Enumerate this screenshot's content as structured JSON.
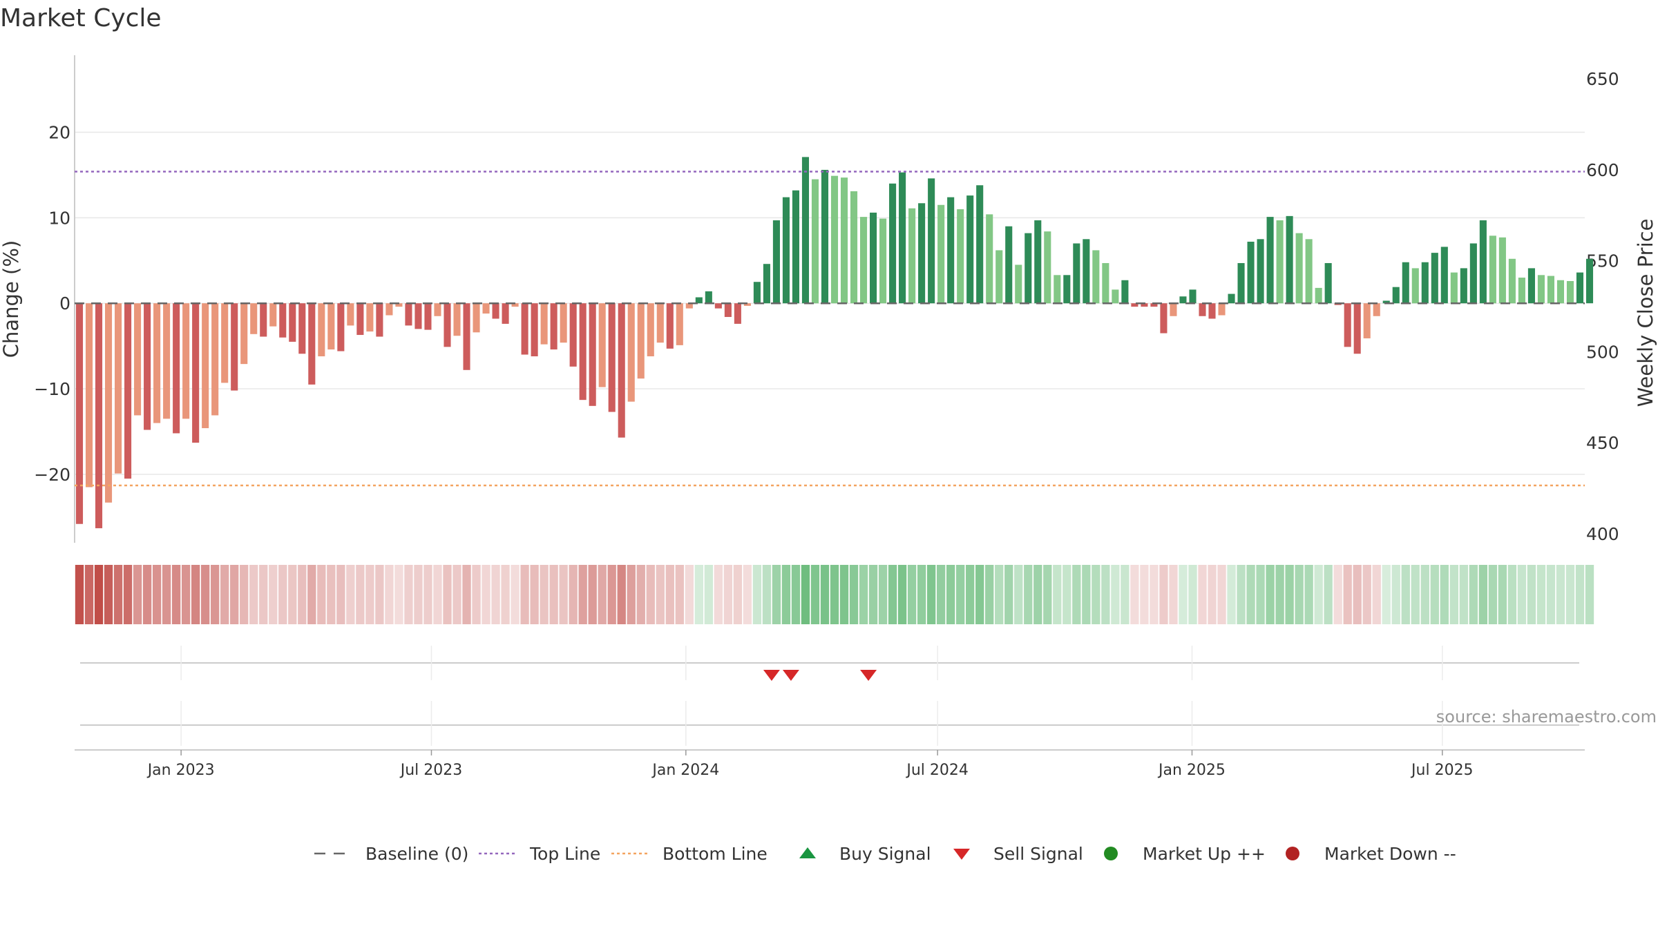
{
  "chart_data": {
    "type": "bar",
    "title": "Market Cycle",
    "ylabel": "Change (%)",
    "y2label": "Weekly Close Price",
    "ylim": [
      -28,
      29
    ],
    "y2lim": [
      395,
      663
    ],
    "yticks": [
      -20,
      -10,
      0,
      10,
      20
    ],
    "yticklabels": [
      "−20",
      "−10",
      "0",
      "10",
      "20"
    ],
    "y2ticks": [
      400,
      450,
      500,
      550,
      600,
      650
    ],
    "xrange": [
      "2022-10-16",
      "2025-10-12"
    ],
    "xticks": [
      {
        "date": "2023-01-01",
        "label": "Jan 2023"
      },
      {
        "date": "2023-07-01",
        "label": "Jul 2023"
      },
      {
        "date": "2024-01-01",
        "label": "Jan 2024"
      },
      {
        "date": "2024-07-01",
        "label": "Jul 2024"
      },
      {
        "date": "2025-01-01",
        "label": "Jan 2025"
      },
      {
        "date": "2025-07-01",
        "label": "Jul 2025"
      }
    ],
    "bar_start_week": "2022-10-16",
    "bar_interval_days": 7,
    "top_line": 15.4,
    "bottom_line": -21.3,
    "values": [
      -25.8,
      -21.5,
      -26.3,
      -23.3,
      -19.9,
      -20.5,
      -13.1,
      -14.8,
      -14.0,
      -13.5,
      -15.2,
      -13.5,
      -16.3,
      -14.6,
      -13.1,
      -9.3,
      -10.2,
      -7.1,
      -3.6,
      -3.9,
      -2.7,
      -4.0,
      -4.5,
      -5.9,
      -9.5,
      -6.2,
      -5.4,
      -5.6,
      -2.6,
      -3.7,
      -3.3,
      -3.9,
      -1.4,
      -0.4,
      -2.6,
      -3.0,
      -3.1,
      -1.5,
      -5.1,
      -3.8,
      -7.8,
      -3.4,
      -1.2,
      -1.8,
      -2.4,
      -0.4,
      -6.0,
      -6.2,
      -4.8,
      -5.4,
      -4.6,
      -7.4,
      -11.3,
      -12.0,
      -9.8,
      -12.7,
      -15.7,
      -11.5,
      -8.8,
      -6.2,
      -4.6,
      -5.3,
      -4.9,
      -0.6,
      0.7,
      1.4,
      -0.6,
      -1.6,
      -2.4,
      -0.3,
      2.5,
      4.6,
      9.7,
      12.4,
      13.2,
      17.1,
      14.5,
      15.6,
      14.9,
      14.7,
      13.1,
      10.1,
      10.6,
      9.9,
      14.0,
      15.3,
      11.1,
      11.7,
      14.6,
      11.5,
      12.4,
      11.0,
      12.6,
      13.8,
      10.4,
      6.2,
      9.0,
      4.5,
      8.2,
      9.7,
      8.4,
      3.3,
      3.3,
      7.0,
      7.5,
      6.2,
      4.7,
      1.6,
      2.7,
      -0.4,
      -0.4,
      -0.4,
      -3.5,
      -1.5,
      0.8,
      1.6,
      -1.5,
      -1.8,
      -1.4,
      1.1,
      4.7,
      7.2,
      7.5,
      10.1,
      9.7,
      10.2,
      8.2,
      7.5,
      1.8,
      4.7,
      -0.2,
      -5.1,
      -5.9,
      -4.1,
      -1.5,
      0.3,
      1.9,
      4.8,
      4.1,
      4.8,
      5.9,
      6.6,
      3.6,
      4.1,
      7.0,
      9.7,
      7.9,
      7.7,
      5.2,
      3.0,
      4.1,
      3.3,
      3.2,
      2.7,
      2.6,
      3.6,
      5.2
    ],
    "sell_signals": [
      "2024-03-03",
      "2024-03-17",
      "2024-05-12"
    ],
    "buy_signals": [],
    "market_up_markers": [],
    "market_down_markers": [],
    "colors": {
      "neg_strong": "#cd5c5c",
      "neg_light": "#e9967a",
      "pos_strong": "#2e8b57",
      "pos_light": "#82c785",
      "top_line": "#9467bd",
      "bottom_line": "#f4a460",
      "baseline": "#666666",
      "buy": "#1a9641",
      "sell": "#d62728",
      "market_up": "#228b22",
      "market_down": "#b22222"
    },
    "legend": {
      "placement": "bottom-center",
      "items": [
        {
          "label": "Baseline (0)",
          "symbol": "dash",
          "color": "#666666"
        },
        {
          "label": "Top Line",
          "symbol": "dot",
          "color": "#9467bd"
        },
        {
          "label": "Bottom Line",
          "symbol": "dot",
          "color": "#f4a460"
        },
        {
          "label": "Buy Signal",
          "symbol": "triangle-up",
          "color": "#1a9641"
        },
        {
          "label": "Sell Signal",
          "symbol": "triangle-down",
          "color": "#d62728"
        },
        {
          "label": "Market Up ++",
          "symbol": "circle",
          "color": "#228b22"
        },
        {
          "label": "Market Down --",
          "symbol": "circle",
          "color": "#b22222"
        }
      ]
    },
    "grid": true
  },
  "source_text": "source: sharemaestro.com"
}
